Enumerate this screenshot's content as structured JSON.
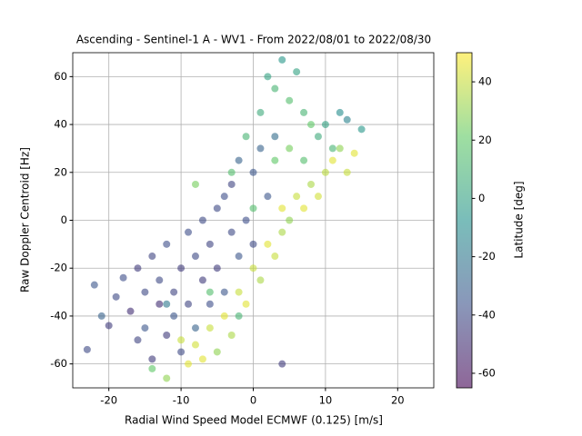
{
  "chart_data": {
    "type": "scatter",
    "title": "Ascending - Sentinel-1 A - WV1 - From 2022/08/01 to 2022/08/30",
    "x_label": "Radial Wind Speed Model ECMWF (0.125) [m/s]",
    "y_label": "Raw Doppler Centroid [Hz]",
    "colorbar_label": "Latitude [deg]",
    "colormap": "viridis",
    "xlim": [
      -25,
      25
    ],
    "ylim": [
      -70,
      70
    ],
    "xticks": [
      -20,
      -10,
      0,
      10,
      20
    ],
    "yticks": [
      -60,
      -40,
      -20,
      0,
      20,
      40,
      60
    ],
    "clim": [
      -65,
      50
    ],
    "cticks": [
      -60,
      -40,
      -20,
      0,
      20,
      40
    ],
    "grid": true,
    "x": [
      -23,
      -22,
      -20,
      -19,
      -18,
      -17,
      -16,
      -16,
      -15,
      -15,
      -14,
      -14,
      -13,
      -13,
      -12,
      -12,
      -11,
      -11,
      -10,
      -10,
      -9,
      -9,
      -8,
      -8,
      -7,
      -7,
      -6,
      -6,
      -5,
      -5,
      -4,
      -4,
      -3,
      -3,
      -2,
      -2,
      -1,
      0,
      0,
      1,
      2,
      3,
      -10,
      -9,
      -8,
      -7,
      -6,
      -5,
      -4,
      -3,
      -2,
      -1,
      0,
      1,
      2,
      3,
      4,
      4,
      5,
      6,
      7,
      8,
      9,
      10,
      11,
      12,
      13,
      14,
      -12,
      -14,
      -3,
      -1,
      1,
      2,
      3,
      4,
      5,
      6,
      7,
      8,
      9,
      10,
      11,
      12,
      13,
      0,
      3,
      5,
      7,
      -2,
      -6,
      -8,
      15,
      4,
      -21,
      -12
    ],
    "y": [
      -54,
      -27,
      -44,
      -32,
      -24,
      -38,
      -50,
      -20,
      -30,
      -45,
      -15,
      -58,
      -35,
      -25,
      -10,
      -48,
      -30,
      -40,
      -20,
      -55,
      -5,
      -35,
      -15,
      -45,
      -25,
      0,
      -10,
      -35,
      5,
      -20,
      -30,
      10,
      -5,
      15,
      -15,
      25,
      0,
      20,
      -10,
      30,
      10,
      35,
      -50,
      -60,
      -52,
      -58,
      -45,
      -55,
      -40,
      -48,
      -30,
      -35,
      -20,
      -25,
      -10,
      -15,
      -5,
      5,
      0,
      10,
      5,
      15,
      10,
      20,
      25,
      30,
      20,
      28,
      -66,
      -62,
      20,
      35,
      45,
      60,
      55,
      67,
      50,
      62,
      45,
      40,
      35,
      40,
      30,
      45,
      42,
      5,
      25,
      30,
      25,
      -40,
      -30,
      15,
      38,
      -60,
      -40,
      -35
    ],
    "c": [
      -40,
      -35,
      -45,
      -40,
      -38,
      -50,
      -42,
      -45,
      -40,
      -35,
      -42,
      -45,
      -50,
      -40,
      -38,
      -45,
      -42,
      -35,
      -45,
      -40,
      -38,
      -42,
      -40,
      -30,
      -45,
      -40,
      -42,
      -38,
      -40,
      -45,
      -35,
      -38,
      -40,
      -42,
      -35,
      -30,
      -38,
      -35,
      -40,
      -30,
      -35,
      -25,
      40,
      45,
      42,
      45,
      40,
      30,
      45,
      35,
      40,
      45,
      40,
      35,
      45,
      40,
      35,
      45,
      30,
      40,
      45,
      35,
      42,
      38,
      45,
      30,
      40,
      45,
      30,
      20,
      15,
      10,
      5,
      0,
      10,
      -5,
      15,
      0,
      10,
      20,
      5,
      0,
      10,
      -10,
      -15,
      15,
      20,
      25,
      15,
      10,
      15,
      25,
      -5,
      -45,
      -30,
      -20
    ]
  }
}
